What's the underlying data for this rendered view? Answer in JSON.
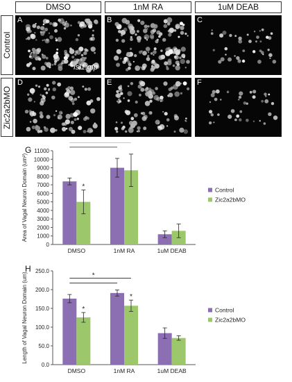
{
  "columns": [
    "DMSO",
    "1nM RA",
    "1uM DEAB"
  ],
  "rows": [
    "Control",
    "Zic2a2bMO"
  ],
  "panels": [
    {
      "letter": "A",
      "caption": "isl1:gfp",
      "signal": "high"
    },
    {
      "letter": "B",
      "caption": "",
      "signal": "high"
    },
    {
      "letter": "C",
      "caption": "",
      "signal": "low"
    },
    {
      "letter": "D",
      "caption": "",
      "signal": "mid"
    },
    {
      "letter": "E",
      "caption": "",
      "signal": "mid"
    },
    {
      "letter": "F",
      "caption": "",
      "signal": "low"
    }
  ],
  "panel_g_letter": "G",
  "panel_h_letter": "H",
  "colors": {
    "control": "#8c6fb3",
    "mo": "#9cc76a"
  },
  "chart_data": [
    {
      "type": "bar",
      "ylabel": "Area of Vagal Neuron Domain (um²)",
      "categories": [
        "DMSO",
        "1nM RA",
        "1uM DEAB"
      ],
      "ylim": [
        0,
        11000
      ],
      "yticks": [
        "0",
        "1000",
        "2000",
        "3000",
        "4000",
        "5000",
        "6000",
        "7000",
        "8000",
        "9000",
        "10000",
        "11000"
      ],
      "ytick_values": [
        0,
        1000,
        2000,
        3000,
        4000,
        5000,
        6000,
        7000,
        8000,
        9000,
        10000,
        11000
      ],
      "series": [
        {
          "name": "Control",
          "values": [
            7400,
            9000,
            1200
          ],
          "errors": [
            400,
            1100,
            400
          ]
        },
        {
          "name": "Zic2a2bMO",
          "values": [
            5000,
            8700,
            1600
          ],
          "errors": [
            1400,
            1900,
            800
          ]
        }
      ],
      "annotations": {
        "bar_star": "*",
        "bar_star_on": [
          [
            1,
            0
          ]
        ],
        "bracket_star": "*",
        "bracket": [
          0,
          1
        ]
      },
      "legend_position": "right"
    },
    {
      "type": "bar",
      "ylabel": "Length of Vagal Neuron Domain (um)",
      "categories": [
        "DMSO",
        "1nM RA",
        "1uM DEAB"
      ],
      "ylim": [
        0,
        250
      ],
      "yticks": [
        "0.0",
        "50.0",
        "100.0",
        "150.0",
        "200.0",
        "250.0"
      ],
      "ytick_values": [
        0,
        50,
        100,
        150,
        200,
        250
      ],
      "series": [
        {
          "name": "Control",
          "values": [
            176,
            191,
            84
          ],
          "errors": [
            11,
            8,
            14
          ]
        },
        {
          "name": "Zic2a2bMO",
          "values": [
            126,
            157,
            71
          ],
          "errors": [
            13,
            15,
            6
          ]
        }
      ],
      "annotations": {
        "bar_star": "*",
        "bar_star_on": [
          [
            1,
            0
          ],
          [
            1,
            1
          ]
        ],
        "bracket_star": "*",
        "bracket": [
          0,
          1
        ]
      },
      "legend_position": "right"
    }
  ]
}
